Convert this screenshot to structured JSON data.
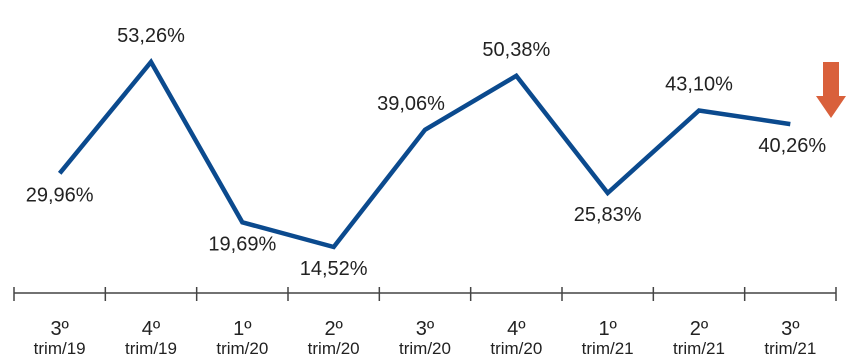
{
  "chart_data": {
    "type": "line",
    "categories": [
      {
        "top": "3º",
        "bottom": "trim/19"
      },
      {
        "top": "4º",
        "bottom": "trim/19"
      },
      {
        "top": "1º",
        "bottom": "trim/20"
      },
      {
        "top": "2º",
        "bottom": "trim/20"
      },
      {
        "top": "3º",
        "bottom": "trim/20"
      },
      {
        "top": "4º",
        "bottom": "trim/20"
      },
      {
        "top": "1º",
        "bottom": "trim/21"
      },
      {
        "top": "2º",
        "bottom": "trim/21"
      },
      {
        "top": "3º",
        "bottom": "trim/21"
      }
    ],
    "series": [
      {
        "values": [
          29.96,
          53.26,
          19.69,
          14.52,
          39.06,
          50.38,
          25.83,
          43.1,
          40.26
        ],
        "labels": [
          "29,96%",
          "53,26%",
          "19,69%",
          "14,52%",
          "39,06%",
          "50,38%",
          "25,83%",
          "43,10%",
          "40,26%"
        ],
        "color": "#0b4a8e"
      }
    ],
    "label_positions": [
      "below",
      "above",
      "below",
      "below",
      "above",
      "above",
      "below",
      "above",
      "below"
    ],
    "title": "",
    "xlabel": "",
    "ylabel": "",
    "grid": false,
    "trend_arrow": {
      "direction": "down",
      "color": "#d9603b",
      "icon": "down-arrow-icon"
    }
  }
}
